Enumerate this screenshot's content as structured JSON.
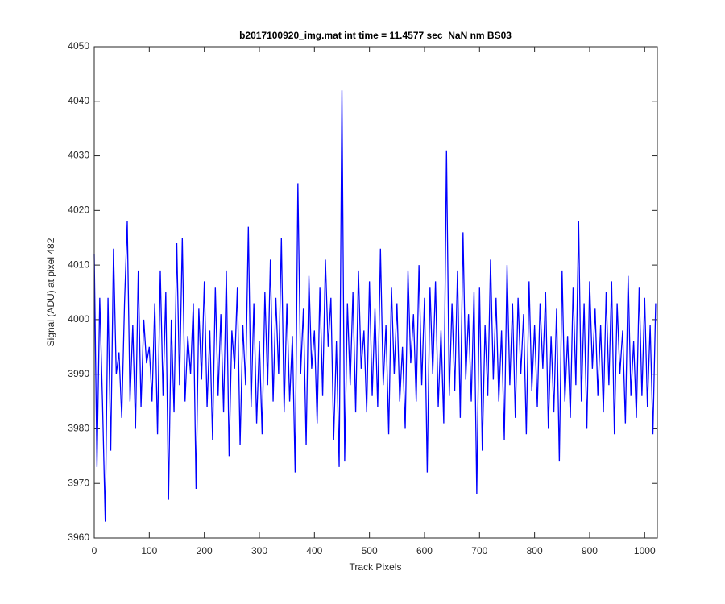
{
  "chart_data": {
    "type": "line",
    "title": "b2017100920_img.mat int time = 11.4577 sec  NaN nm BS03",
    "x_label": "Track Pixels",
    "y_label": "Signal (ADU) at pixel 482",
    "x": [
      0,
      5,
      10,
      15,
      20,
      25,
      30,
      35,
      40,
      45,
      50,
      55,
      60,
      65,
      70,
      75,
      80,
      85,
      90,
      95,
      100,
      105,
      110,
      115,
      120,
      125,
      130,
      135,
      140,
      145,
      150,
      155,
      160,
      165,
      170,
      175,
      180,
      185,
      190,
      195,
      200,
      205,
      210,
      215,
      220,
      225,
      230,
      235,
      240,
      245,
      250,
      255,
      260,
      265,
      270,
      275,
      280,
      285,
      290,
      295,
      300,
      305,
      310,
      315,
      320,
      325,
      330,
      335,
      340,
      345,
      350,
      355,
      360,
      365,
      370,
      375,
      380,
      385,
      390,
      395,
      400,
      405,
      410,
      415,
      420,
      425,
      430,
      435,
      440,
      445,
      450,
      455,
      460,
      465,
      470,
      475,
      480,
      485,
      490,
      495,
      500,
      505,
      510,
      515,
      520,
      525,
      530,
      535,
      540,
      545,
      550,
      555,
      560,
      565,
      570,
      575,
      580,
      585,
      590,
      595,
      600,
      605,
      610,
      615,
      620,
      625,
      630,
      635,
      640,
      645,
      650,
      655,
      660,
      665,
      670,
      675,
      680,
      685,
      690,
      695,
      700,
      705,
      710,
      715,
      720,
      725,
      730,
      735,
      740,
      745,
      750,
      755,
      760,
      765,
      770,
      775,
      780,
      785,
      790,
      795,
      800,
      805,
      810,
      815,
      820,
      825,
      830,
      835,
      840,
      845,
      850,
      855,
      860,
      865,
      870,
      875,
      880,
      885,
      890,
      895,
      900,
      905,
      910,
      915,
      920,
      925,
      930,
      935,
      940,
      945,
      950,
      955,
      960,
      965,
      970,
      975,
      980,
      985,
      990,
      995,
      1000,
      1005,
      1010,
      1015,
      1020
    ],
    "series": [
      {
        "name": "Signal",
        "color": "#0000ff",
        "values": [
          4012,
          3973,
          4004,
          3985,
          3963,
          4004,
          3976,
          4013,
          3990,
          3994,
          3982,
          4003,
          4018,
          3985,
          3999,
          3980,
          4009,
          3984,
          4000,
          3992,
          3995,
          3985,
          4003,
          3979,
          4009,
          3986,
          4005,
          3967,
          4000,
          3983,
          4014,
          3988,
          4015,
          3985,
          3997,
          3990,
          4003,
          3969,
          4002,
          3989,
          4007,
          3984,
          3998,
          3978,
          4006,
          3986,
          4001,
          3983,
          4009,
          3975,
          3998,
          3991,
          4006,
          3977,
          3999,
          3988,
          4017,
          3984,
          4003,
          3981,
          3996,
          3979,
          4005,
          3988,
          4011,
          3985,
          4004,
          3990,
          4015,
          3983,
          4003,
          3985,
          3997,
          3972,
          4025,
          3990,
          4002,
          3977,
          4008,
          3991,
          3998,
          3981,
          4006,
          3986,
          4011,
          3995,
          4004,
          3978,
          3996,
          3973,
          4042,
          3974,
          4003,
          3988,
          4005,
          3983,
          4009,
          3991,
          3998,
          3983,
          4007,
          3986,
          4002,
          3984,
          4013,
          3988,
          3999,
          3979,
          4006,
          3990,
          4003,
          3985,
          3995,
          3980,
          4009,
          3992,
          4001,
          3985,
          4010,
          3988,
          4004,
          3972,
          4006,
          3990,
          4007,
          3984,
          3998,
          3981,
          4031,
          3986,
          4003,
          3987,
          4009,
          3982,
          4016,
          3989,
          4001,
          3985,
          4005,
          3968,
          4006,
          3976,
          3999,
          3986,
          4011,
          3989,
          4004,
          3985,
          3998,
          3978,
          4010,
          3988,
          4003,
          3982,
          4004,
          3990,
          4001,
          3979,
          4007,
          3987,
          3999,
          3984,
          4003,
          3991,
          4005,
          3980,
          3997,
          3983,
          4002,
          3974,
          4009,
          3985,
          3997,
          3982,
          4006,
          3988,
          4018,
          3985,
          4003,
          3980,
          4007,
          3991,
          4002,
          3986,
          3999,
          3983,
          4005,
          3988,
          4007,
          3979,
          4003,
          3990,
          3998,
          3981,
          4008,
          3986,
          3996,
          3982,
          4006,
          3986,
          4004,
          3984,
          3999,
          3979,
          4003
        ]
      }
    ],
    "xlim": [
      0,
      1023
    ],
    "xticks": [
      0,
      100,
      200,
      300,
      400,
      500,
      600,
      700,
      800,
      900,
      1000
    ],
    "ylim": [
      3960,
      4050
    ],
    "yticks": [
      3960,
      3970,
      3980,
      3990,
      4000,
      4010,
      4020,
      4030,
      4040,
      4050
    ],
    "grid": false
  }
}
